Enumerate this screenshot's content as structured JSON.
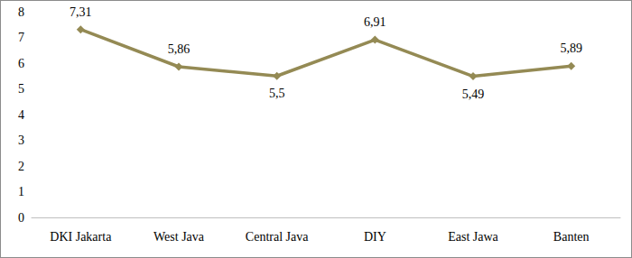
{
  "chart_data": {
    "type": "line",
    "categories": [
      "DKI Jakarta",
      "West Java",
      "Central Java",
      "DIY",
      "East Jawa",
      "Banten"
    ],
    "values": [
      7.31,
      5.86,
      5.5,
      6.91,
      5.49,
      5.89
    ],
    "value_labels": [
      "7,31",
      "5,86",
      "5,5",
      "6,91",
      "5,49",
      "5,89"
    ],
    "color": "#948a54",
    "marker": "diamond",
    "ylim": [
      0,
      8
    ],
    "yticks": [
      0,
      1,
      2,
      3,
      4,
      5,
      6,
      7,
      8
    ],
    "grid": false,
    "data_labels": true
  }
}
